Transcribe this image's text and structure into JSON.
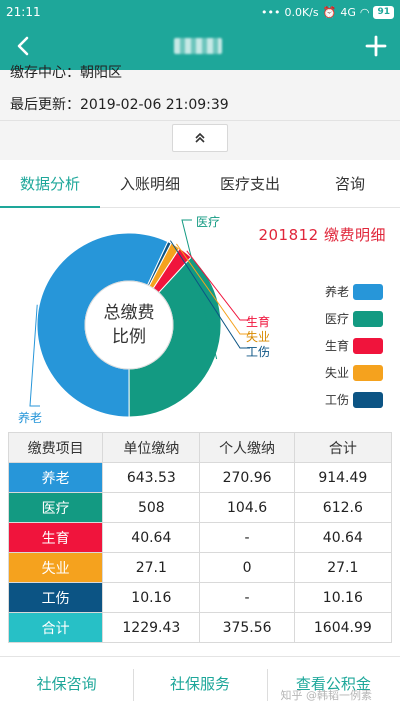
{
  "statusbar": {
    "time": "21:11",
    "dots": "•••",
    "speed": "0.0K/s",
    "network": "4G",
    "battery": "91"
  },
  "appbar": {
    "title": "■■■"
  },
  "info": {
    "center": "缴存中心：朝阳区",
    "updated": "最后更新：2019-02-06 21:09:39"
  },
  "tabs": [
    "数据分析",
    "入账明细",
    "医疗支出",
    "咨询"
  ],
  "chart_title": "201812 缴费明细",
  "colors": {
    "accent": "#1ea79a",
    "pension": "#2796d9",
    "medical": "#139a82",
    "maternity": "#f0143c",
    "unemployment": "#f5a21e",
    "injury": "#0c5484",
    "total": "#27c0c6"
  },
  "chart_data": {
    "type": "pie",
    "title": "201812 缴费明细",
    "center_label": [
      "总缴费",
      "比例"
    ],
    "categories": [
      "养老",
      "医疗",
      "生育",
      "失业",
      "工伤"
    ],
    "values": [
      914.49,
      612.6,
      40.64,
      27.1,
      10.16
    ],
    "legend": [
      "养老",
      "医疗",
      "生育",
      "失业",
      "工伤"
    ],
    "legend_placement": "right"
  },
  "table": {
    "headers": [
      "缴费项目",
      "单位缴纳",
      "个人缴纳",
      "合计"
    ],
    "rows": [
      {
        "item": "养老",
        "unit": "643.53",
        "personal": "270.96",
        "total": "914.49"
      },
      {
        "item": "医疗",
        "unit": "508",
        "personal": "104.6",
        "total": "612.6"
      },
      {
        "item": "生育",
        "unit": "40.64",
        "personal": "-",
        "total": "40.64"
      },
      {
        "item": "失业",
        "unit": "27.1",
        "personal": "0",
        "total": "27.1"
      },
      {
        "item": "工伤",
        "unit": "10.16",
        "personal": "-",
        "total": "10.16"
      },
      {
        "item": "合计",
        "unit": "1229.43",
        "personal": "375.56",
        "total": "1604.99"
      }
    ]
  },
  "bottom": [
    "社保咨询",
    "社保服务",
    "查看公积金"
  ],
  "watermark": "知乎 @韩韬一例素"
}
